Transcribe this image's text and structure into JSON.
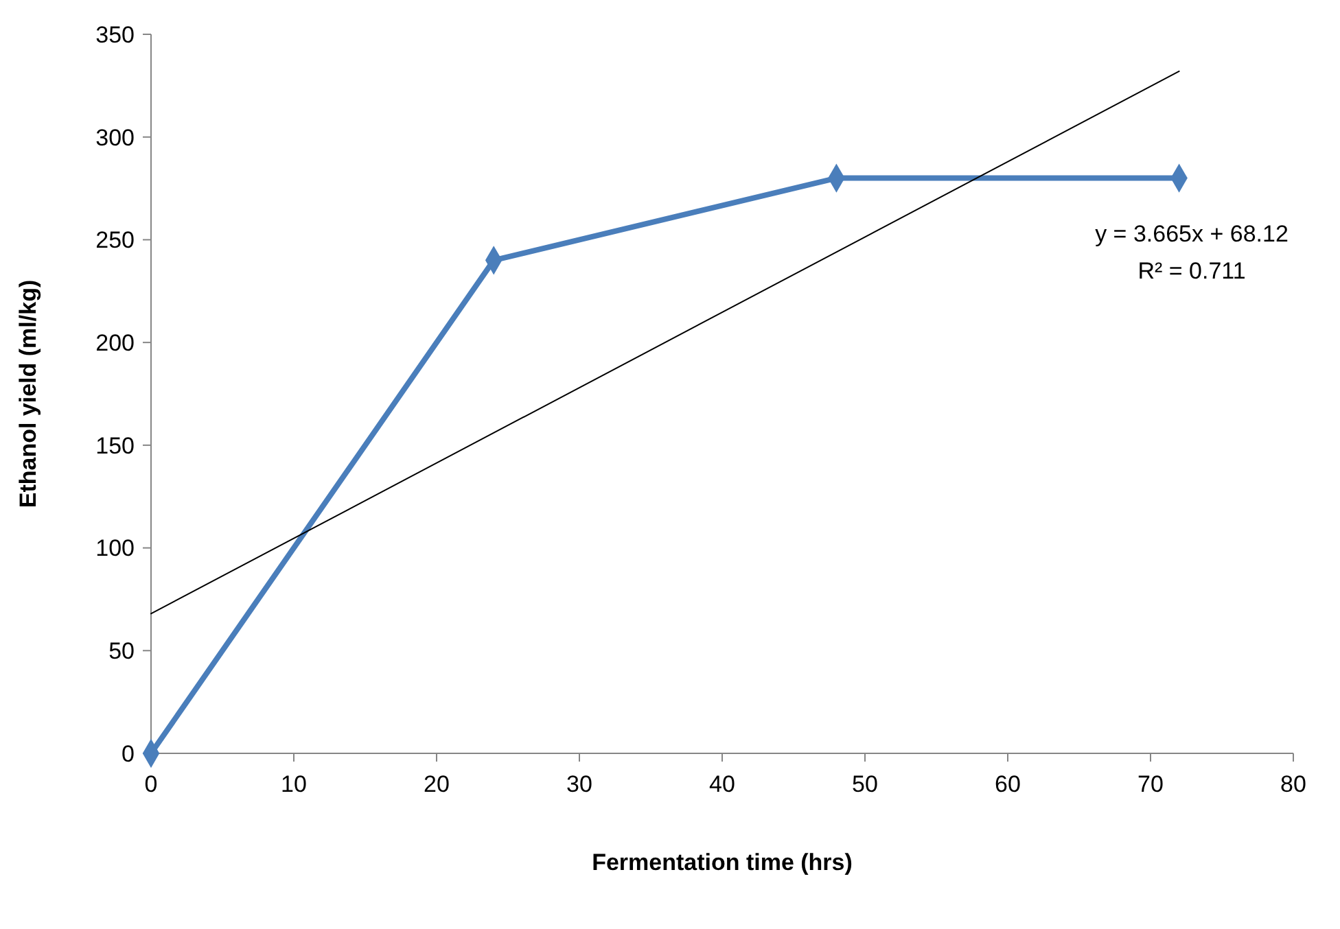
{
  "chart_data": {
    "type": "line",
    "xlabel": "Fermentation time (hrs)",
    "ylabel": "Ethanol  yield (ml/kg)",
    "xlim": [
      0,
      80
    ],
    "ylim": [
      0,
      350
    ],
    "xticks": [
      0,
      10,
      20,
      30,
      40,
      50,
      60,
      70,
      80
    ],
    "yticks": [
      0,
      50,
      100,
      150,
      200,
      250,
      300,
      350
    ],
    "grid": false,
    "series": [
      {
        "color": "#4a7ebb",
        "x": [
          0,
          24,
          48,
          72
        ],
        "values": [
          0,
          240,
          280,
          280
        ],
        "marker": "diamond"
      },
      {
        "color": "#000000",
        "x": [
          0,
          72
        ],
        "values": [
          68,
          332
        ],
        "marker": "none"
      }
    ],
    "annotations": [
      "y = 3.665x + 68.12",
      "R² = 0.711"
    ]
  }
}
